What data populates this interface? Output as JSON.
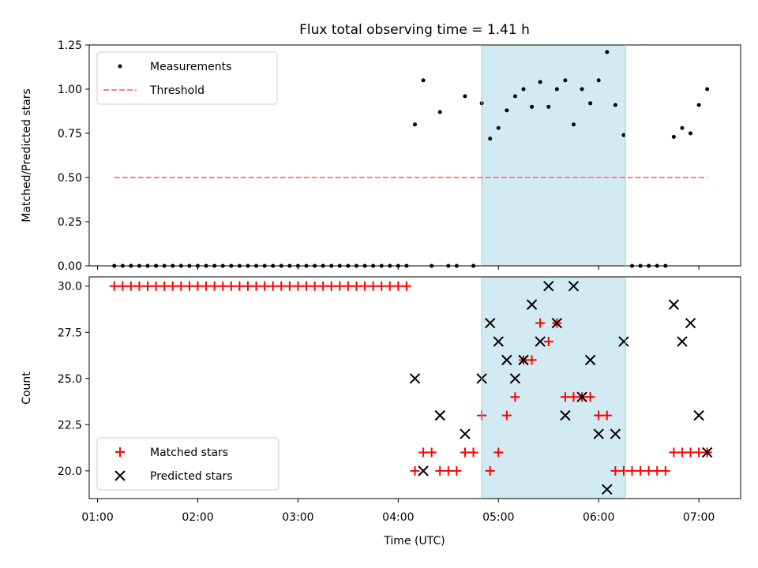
{
  "chart_data": {
    "title": "Flux total observing time = 1.41 h",
    "xlabel": "Time (UTC)",
    "x_ticks": [
      "01:00",
      "02:00",
      "03:00",
      "04:00",
      "05:00",
      "06:00",
      "07:00"
    ],
    "highlight_span": [
      "04:50",
      "06:16"
    ],
    "highlight_color": "#add8e6",
    "panels": [
      {
        "type": "scatter",
        "ylabel": "Matched/Predicted stars",
        "ylim": [
          0,
          1.25
        ],
        "y_ticks": [
          "0.00",
          "0.25",
          "0.50",
          "0.75",
          "1.00",
          "1.25"
        ],
        "legend_position": "top-left",
        "series": [
          {
            "name": "Measurements",
            "marker": "dot",
            "color": "#000000",
            "points": [
              [
                "01:10",
                0
              ],
              [
                "01:15",
                0
              ],
              [
                "01:20",
                0
              ],
              [
                "01:25",
                0
              ],
              [
                "01:30",
                0
              ],
              [
                "01:35",
                0
              ],
              [
                "01:40",
                0
              ],
              [
                "01:45",
                0
              ],
              [
                "01:50",
                0
              ],
              [
                "01:55",
                0
              ],
              [
                "02:00",
                0
              ],
              [
                "02:05",
                0
              ],
              [
                "02:10",
                0
              ],
              [
                "02:15",
                0
              ],
              [
                "02:20",
                0
              ],
              [
                "02:25",
                0
              ],
              [
                "02:30",
                0
              ],
              [
                "02:35",
                0
              ],
              [
                "02:40",
                0
              ],
              [
                "02:45",
                0
              ],
              [
                "02:50",
                0
              ],
              [
                "02:55",
                0
              ],
              [
                "03:00",
                0
              ],
              [
                "03:05",
                0
              ],
              [
                "03:10",
                0
              ],
              [
                "03:15",
                0
              ],
              [
                "03:20",
                0
              ],
              [
                "03:25",
                0
              ],
              [
                "03:30",
                0
              ],
              [
                "03:35",
                0
              ],
              [
                "03:40",
                0
              ],
              [
                "03:45",
                0
              ],
              [
                "03:50",
                0
              ],
              [
                "03:55",
                0
              ],
              [
                "04:00",
                0
              ],
              [
                "04:05",
                0
              ],
              [
                "04:10",
                0.8
              ],
              [
                "04:15",
                1.05
              ],
              [
                "04:20",
                0
              ],
              [
                "04:25",
                0.87
              ],
              [
                "04:30",
                0
              ],
              [
                "04:35",
                0
              ],
              [
                "04:40",
                0.96
              ],
              [
                "04:45",
                0
              ],
              [
                "04:50",
                0.92
              ],
              [
                "04:55",
                0.72
              ],
              [
                "05:00",
                0.78
              ],
              [
                "05:05",
                0.88
              ],
              [
                "05:10",
                0.96
              ],
              [
                "05:15",
                1.0
              ],
              [
                "05:20",
                0.9
              ],
              [
                "05:25",
                1.04
              ],
              [
                "05:30",
                0.9
              ],
              [
                "05:35",
                1.0
              ],
              [
                "05:40",
                1.05
              ],
              [
                "05:45",
                0.8
              ],
              [
                "05:50",
                1.0
              ],
              [
                "05:55",
                0.92
              ],
              [
                "06:00",
                1.05
              ],
              [
                "06:05",
                1.21
              ],
              [
                "06:10",
                0.91
              ],
              [
                "06:15",
                0.74
              ],
              [
                "06:20",
                0
              ],
              [
                "06:25",
                0
              ],
              [
                "06:30",
                0
              ],
              [
                "06:35",
                0
              ],
              [
                "06:40",
                0
              ],
              [
                "06:45",
                0.73
              ],
              [
                "06:50",
                0.78
              ],
              [
                "06:55",
                0.75
              ],
              [
                "07:00",
                0.91
              ],
              [
                "07:05",
                1.0
              ]
            ]
          },
          {
            "name": "Threshold",
            "marker": "dashed-line",
            "color": "#ff7f7f",
            "points": [
              [
                "01:10",
                0.5
              ],
              [
                "07:05",
                0.5
              ]
            ]
          }
        ]
      },
      {
        "type": "scatter",
        "ylabel": "Count",
        "ylim": [
          18.5,
          30.5
        ],
        "y_ticks": [
          "20.0",
          "22.5",
          "25.0",
          "27.5",
          "30.0"
        ],
        "legend_position": "bottom-left",
        "series": [
          {
            "name": "Matched stars",
            "marker": "plus",
            "color": "#ff0000",
            "points": [
              [
                "01:10",
                30
              ],
              [
                "01:15",
                30
              ],
              [
                "01:20",
                30
              ],
              [
                "01:25",
                30
              ],
              [
                "01:30",
                30
              ],
              [
                "01:35",
                30
              ],
              [
                "01:40",
                30
              ],
              [
                "01:45",
                30
              ],
              [
                "01:50",
                30
              ],
              [
                "01:55",
                30
              ],
              [
                "02:00",
                30
              ],
              [
                "02:05",
                30
              ],
              [
                "02:10",
                30
              ],
              [
                "02:15",
                30
              ],
              [
                "02:20",
                30
              ],
              [
                "02:25",
                30
              ],
              [
                "02:30",
                30
              ],
              [
                "02:35",
                30
              ],
              [
                "02:40",
                30
              ],
              [
                "02:45",
                30
              ],
              [
                "02:50",
                30
              ],
              [
                "02:55",
                30
              ],
              [
                "03:00",
                30
              ],
              [
                "03:05",
                30
              ],
              [
                "03:10",
                30
              ],
              [
                "03:15",
                30
              ],
              [
                "03:20",
                30
              ],
              [
                "03:25",
                30
              ],
              [
                "03:30",
                30
              ],
              [
                "03:35",
                30
              ],
              [
                "03:40",
                30
              ],
              [
                "03:45",
                30
              ],
              [
                "03:50",
                30
              ],
              [
                "03:55",
                30
              ],
              [
                "04:00",
                30
              ],
              [
                "04:05",
                30
              ],
              [
                "04:10",
                20
              ],
              [
                "04:15",
                21
              ],
              [
                "04:20",
                21
              ],
              [
                "04:25",
                20
              ],
              [
                "04:30",
                20
              ],
              [
                "04:35",
                20
              ],
              [
                "04:40",
                21
              ],
              [
                "04:45",
                21
              ],
              [
                "04:50",
                23
              ],
              [
                "04:55",
                20
              ],
              [
                "05:00",
                21
              ],
              [
                "05:05",
                23
              ],
              [
                "05:10",
                24
              ],
              [
                "05:15",
                26
              ],
              [
                "05:20",
                26
              ],
              [
                "05:25",
                28
              ],
              [
                "05:30",
                27
              ],
              [
                "05:35",
                28
              ],
              [
                "05:40",
                24
              ],
              [
                "05:45",
                24
              ],
              [
                "05:50",
                24
              ],
              [
                "05:55",
                24
              ],
              [
                "06:00",
                23
              ],
              [
                "06:05",
                23
              ],
              [
                "06:10",
                20
              ],
              [
                "06:15",
                20
              ],
              [
                "06:20",
                20
              ],
              [
                "06:25",
                20
              ],
              [
                "06:30",
                20
              ],
              [
                "06:35",
                20
              ],
              [
                "06:40",
                20
              ],
              [
                "06:45",
                21
              ],
              [
                "06:50",
                21
              ],
              [
                "06:55",
                21
              ],
              [
                "07:00",
                21
              ],
              [
                "07:05",
                21
              ]
            ]
          },
          {
            "name": "Predicted stars",
            "marker": "x",
            "color": "#000000",
            "points": [
              [
                "04:10",
                25
              ],
              [
                "04:15",
                20
              ],
              [
                "04:25",
                23
              ],
              [
                "04:40",
                22
              ],
              [
                "04:50",
                25
              ],
              [
                "04:55",
                28
              ],
              [
                "05:00",
                27
              ],
              [
                "05:05",
                26
              ],
              [
                "05:10",
                25
              ],
              [
                "05:15",
                26
              ],
              [
                "05:20",
                29
              ],
              [
                "05:25",
                27
              ],
              [
                "05:30",
                30
              ],
              [
                "05:35",
                28
              ],
              [
                "05:40",
                23
              ],
              [
                "05:45",
                30
              ],
              [
                "05:50",
                24
              ],
              [
                "05:55",
                26
              ],
              [
                "06:00",
                22
              ],
              [
                "06:05",
                19
              ],
              [
                "06:10",
                22
              ],
              [
                "06:15",
                27
              ],
              [
                "06:45",
                29
              ],
              [
                "06:50",
                27
              ],
              [
                "06:55",
                28
              ],
              [
                "07:00",
                23
              ],
              [
                "07:05",
                21
              ]
            ]
          }
        ]
      }
    ]
  }
}
